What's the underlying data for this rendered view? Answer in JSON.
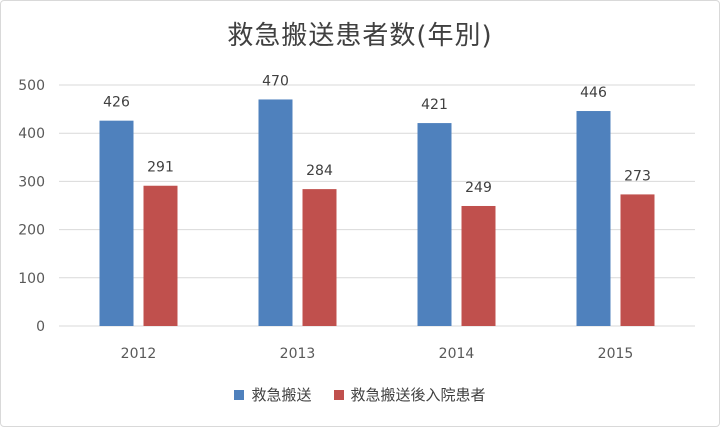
{
  "chart_data": {
    "type": "bar",
    "title": "救急搬送患者数(年別)",
    "categories": [
      "2012",
      "2013",
      "2014",
      "2015"
    ],
    "series": [
      {
        "name": "救急搬送",
        "values": [
          426,
          470,
          421,
          446
        ],
        "color": "#4f81bd"
      },
      {
        "name": "救急搬送後入院患者",
        "values": [
          291,
          284,
          249,
          273
        ],
        "color": "#c0504d"
      }
    ],
    "ylim": [
      0,
      500
    ],
    "yticks": [
      0,
      100,
      200,
      300,
      400,
      500
    ],
    "grid": true,
    "data_labels": true,
    "legend": "bottom"
  }
}
